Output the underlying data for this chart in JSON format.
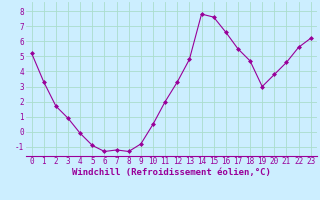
{
  "x": [
    0,
    1,
    2,
    3,
    4,
    5,
    6,
    7,
    8,
    9,
    10,
    11,
    12,
    13,
    14,
    15,
    16,
    17,
    18,
    19,
    20,
    21,
    22,
    23
  ],
  "y": [
    5.2,
    3.3,
    1.7,
    0.9,
    -0.1,
    -0.9,
    -1.3,
    -1.2,
    -1.3,
    -0.8,
    0.5,
    2.0,
    3.3,
    4.8,
    7.8,
    7.6,
    6.6,
    5.5,
    4.7,
    3.0,
    3.8,
    4.6,
    5.6,
    6.2
  ],
  "line_color": "#990099",
  "marker": "D",
  "marker_size": 2,
  "bg_color": "#cceeff",
  "grid_color": "#aaddcc",
  "xlabel": "Windchill (Refroidissement éolien,°C)",
  "xlabel_color": "#990099",
  "tick_color": "#990099",
  "ylabel_ticks": [
    -1,
    0,
    1,
    2,
    3,
    4,
    5,
    6,
    7,
    8
  ],
  "xlim": [
    -0.5,
    23.5
  ],
  "ylim": [
    -1.6,
    8.6
  ],
  "xticks": [
    0,
    1,
    2,
    3,
    4,
    5,
    6,
    7,
    8,
    9,
    10,
    11,
    12,
    13,
    14,
    15,
    16,
    17,
    18,
    19,
    20,
    21,
    22,
    23
  ],
  "font_size": 5.5,
  "xlabel_font_size": 6.5,
  "line_width": 0.8,
  "spine_color": "#990099"
}
